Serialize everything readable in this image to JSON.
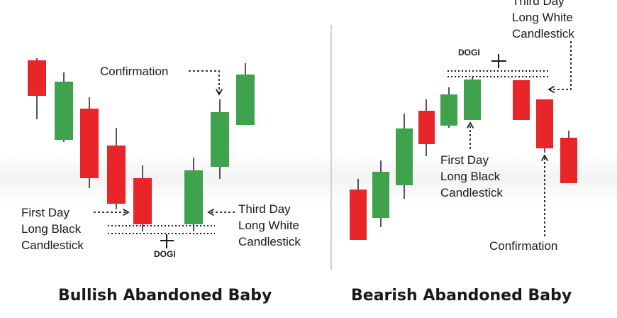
{
  "colors": {
    "bullish": "#3fa34d",
    "bearish": "#e8262a",
    "wick": "#555555",
    "text": "#1a1a1a"
  },
  "panels": [
    {
      "title": "Bullish Abandoned Baby",
      "labels": {
        "first_day": [
          "First Day",
          "Long Black",
          "Candlestick"
        ],
        "third_day": [
          "Third Day",
          "Long White",
          "Candlestick"
        ],
        "doji": "DOGI",
        "confirmation": "Confirmation"
      }
    },
    {
      "title": "Bearish Abandoned Baby",
      "labels": {
        "third_day": [
          "Third Day",
          "Long White",
          "Candlestick"
        ],
        "first_day": [
          "First Day",
          "Long Black",
          "Candlestick"
        ],
        "doji": "DOGI",
        "confirmation": "Confirmation"
      }
    }
  ]
}
